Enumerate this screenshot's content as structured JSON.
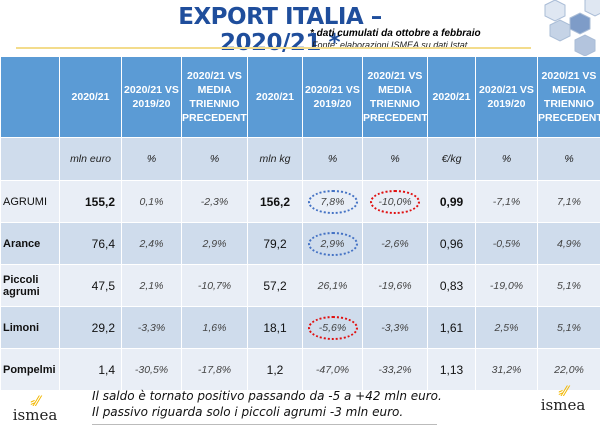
{
  "title": "EXPORT ITALIA –2020/21 *",
  "note": "* dati cumulati da ottobre a  febbraio",
  "source": "Fonte: elaborazioni ISMEA su dati Istat",
  "headers": [
    "",
    "2020/21",
    "2020/21 VS 2019/20",
    "2020/21 VS MEDIA TRIENNIO PRECEDENTE",
    "2020/21",
    "2020/21 VS 2019/20",
    "2020/21 VS MEDIA TRIENNIO PRECEDENTE",
    "2020/21",
    "2020/21 VS 2019/20",
    "2020/21 VS MEDIA TRIENNIO PRECEDENTE"
  ],
  "units": [
    "",
    "mln euro",
    "%",
    "%",
    "mln kg",
    "%",
    "%",
    "€/kg",
    "%",
    "%"
  ],
  "rows": [
    {
      "label": "AGRUMI",
      "cells": [
        "155,2",
        "0,1%",
        "-2,3%",
        "156,2",
        "7,8%",
        "-10,0%",
        "0,99",
        "-7,1%",
        "7,1%"
      ]
    },
    {
      "label": "Arance",
      "cells": [
        "76,4",
        "2,4%",
        "2,9%",
        "79,2",
        "2,9%",
        "-2,6%",
        "0,96",
        "-0,5%",
        "4,9%"
      ]
    },
    {
      "label": "Piccoli agrumi",
      "cells": [
        "47,5",
        "2,1%",
        "-10,7%",
        "57,2",
        "26,1%",
        "-19,6%",
        "0,83",
        "-19,0%",
        "5,1%"
      ]
    },
    {
      "label": "Limoni",
      "cells": [
        "29,2",
        "-3,3%",
        "1,6%",
        "18,1",
        "-5,6%",
        "-3,3%",
        "1,61",
        "2,5%",
        "5,1%"
      ]
    },
    {
      "label": "Pompelmi",
      "cells": [
        "1,4",
        "-30,5%",
        "-17,8%",
        "1,2",
        "-47,0%",
        "-33,2%",
        "1,13",
        "31,2%",
        "22,0%"
      ]
    }
  ],
  "footer": [
    "Il saldo è tornato positivo passando da -5 a +42 mln euro.",
    "Il passivo riguarda solo i piccoli agrumi -3 mln euro."
  ],
  "logo": "ismea",
  "colors": {
    "title": "#1f4e9c",
    "header": "#5b9bd5",
    "row_dark": "#cfdcec",
    "row_light": "#e9eef6",
    "highlight_blue": "#4472c4",
    "highlight_red": "#e01010"
  }
}
